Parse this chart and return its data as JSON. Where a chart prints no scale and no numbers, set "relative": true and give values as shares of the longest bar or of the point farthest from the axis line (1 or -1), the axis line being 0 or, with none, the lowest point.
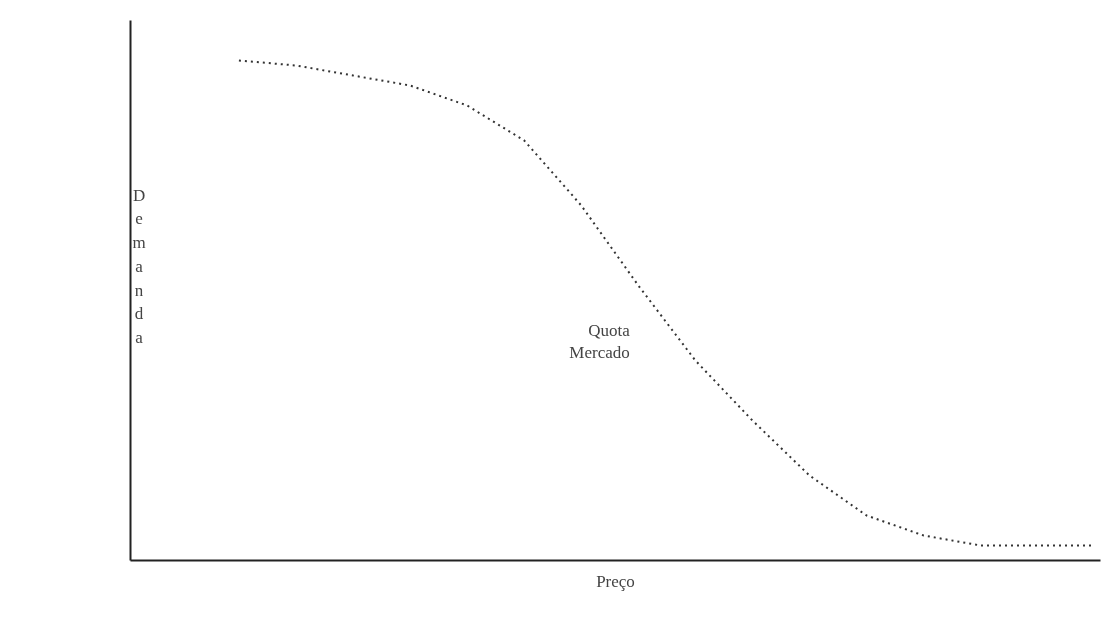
{
  "chart_data": {
    "type": "line",
    "relative": true,
    "xlabel": "Preço",
    "ylabel": "Demanda",
    "categories": [
      null,
      null,
      null,
      null,
      null,
      null,
      null,
      null,
      null,
      null,
      null,
      null,
      null,
      null,
      null,
      null
    ],
    "series": [
      {
        "color": "#333333",
        "values": [
          1.0,
          0.99,
          0.97,
          0.95,
          0.91,
          0.84,
          0.71,
          0.55,
          0.4,
          0.28,
          0.17,
          0.09,
          0.05,
          0.03,
          0.03,
          0.03
        ]
      }
    ],
    "annotations": [
      "Quota Mercado"
    ],
    "line_style": "dotted",
    "marker": "none",
    "grid": false
  }
}
